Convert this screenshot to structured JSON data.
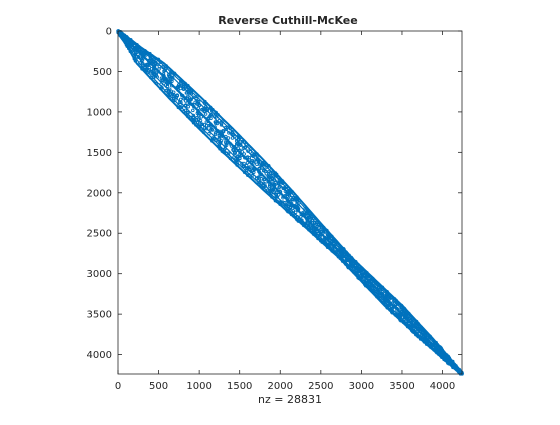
{
  "chart_data": {
    "type": "spy",
    "title": "Reverse Cuthill-McKee",
    "xlabel": "nz = 28831",
    "ylabel": "",
    "xlim": [
      0,
      4240
    ],
    "ylim": [
      4240,
      0
    ],
    "xticks": [
      0,
      500,
      1000,
      1500,
      2000,
      2500,
      3000,
      3500,
      4000
    ],
    "yticks": [
      0,
      500,
      1000,
      1500,
      2000,
      2500,
      3000,
      3500,
      4000
    ],
    "nz": 28831,
    "marker_color": "#0072bd",
    "band_profile": [
      {
        "row": 0,
        "half_bandwidth": 20
      },
      {
        "row": 200,
        "half_bandwidth": 80
      },
      {
        "row": 400,
        "half_bandwidth": 170
      },
      {
        "row": 800,
        "half_bandwidth": 200
      },
      {
        "row": 1200,
        "half_bandwidth": 210
      },
      {
        "row": 1600,
        "half_bandwidth": 200
      },
      {
        "row": 2000,
        "half_bandwidth": 170
      },
      {
        "row": 2400,
        "half_bandwidth": 120
      },
      {
        "row": 2800,
        "half_bandwidth": 80
      },
      {
        "row": 3000,
        "half_bandwidth": 90
      },
      {
        "row": 3400,
        "half_bandwidth": 110
      },
      {
        "row": 3800,
        "half_bandwidth": 80
      },
      {
        "row": 4240,
        "half_bandwidth": 20
      }
    ]
  }
}
